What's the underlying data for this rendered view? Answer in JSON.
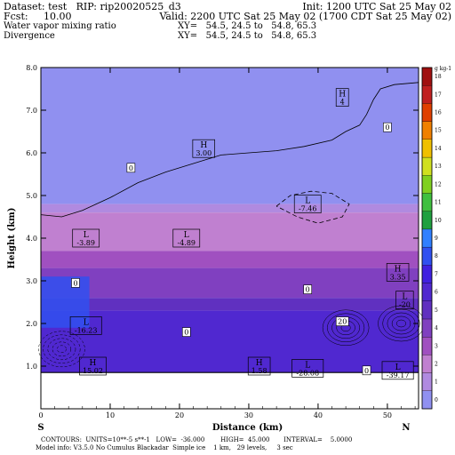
{
  "header": {
    "line1_left": "Dataset: test   RIP: rip20020525_d3",
    "line1_right": "Init: 1200 UTC Sat 25 May 02",
    "line2_left": "Fcst:     10.00",
    "line2_right": "Valid: 2200 UTC Sat 25 May 02 (1700 CDT Sat 25 May 02)",
    "line3_left": "Water vapor mixing ratio",
    "line3_right": "XY=   54.5, 24.5 to   54.8, 65.3",
    "line4_left": "Divergence",
    "line4_right": "XY=   54.5, 24.5 to   54.8, 65.3"
  },
  "footer": {
    "line1": "CONTOURS:  UNITS=10**-5 s**-1   LOW=  -36.000        HIGH=  45.000       INTERVAL=    5.0000",
    "line2": "Model info: V3.5.0 No Cumulus Blackadar  Simple ice    1 km,   29 levels,     3 sec"
  },
  "chart_data": {
    "type": "heatmap",
    "xlabel": "Distance (km)",
    "ylabel": "Height (km)",
    "xlim": [
      0,
      54.5
    ],
    "ylim": [
      0,
      8.0
    ],
    "xticks": [
      0,
      10,
      20,
      30,
      40,
      50
    ],
    "yticks": [
      1.0,
      2.0,
      3.0,
      4.0,
      5.0,
      6.0,
      7.0,
      8.0
    ],
    "x_end_labels": {
      "left": "S",
      "right": "N"
    },
    "terrain_top_km": 0.85,
    "colorbar": {
      "unit": "g kg-1",
      "levels": [
        0,
        1,
        2,
        3,
        4,
        5,
        6,
        7,
        8,
        9,
        10,
        11,
        12,
        13,
        14,
        15,
        16,
        17,
        18
      ],
      "colors": [
        "#9090f0",
        "#b08ae0",
        "#c080d0",
        "#a050c0",
        "#8040c0",
        "#6030c0",
        "#5028d0",
        "#4020e0",
        "#3050f0",
        "#3080ff",
        "#20a040",
        "#40c040",
        "#80d020",
        "#d0e020",
        "#f0c000",
        "#f08000",
        "#e04000",
        "#c02020",
        "#a01010"
      ]
    },
    "mixing_ratio_bands": [
      {
        "top_km": 8.0,
        "value": 0
      },
      {
        "top_km": 4.8,
        "value": 1
      },
      {
        "top_km": 4.6,
        "value": 2
      },
      {
        "top_km": 3.7,
        "value": 3
      },
      {
        "top_km": 3.3,
        "value": 4
      },
      {
        "top_km": 2.6,
        "value": 5
      },
      {
        "top_km": 2.3,
        "value": 6
      }
    ],
    "moist_blob": {
      "value": 8,
      "x": [
        0,
        7
      ],
      "y": [
        1.9,
        3.1
      ]
    },
    "extrema": [
      {
        "type": "H",
        "value": "4",
        "x": 43.5,
        "y": 7.3
      },
      {
        "type": "H",
        "value": "3.00",
        "x": 23.5,
        "y": 6.1
      },
      {
        "type": "L",
        "value": "-7.46",
        "x": 38.5,
        "y": 4.8
      },
      {
        "type": "L",
        "value": "-3.89",
        "x": 6.5,
        "y": 4.0
      },
      {
        "type": "L",
        "value": "-4.89",
        "x": 21.0,
        "y": 4.0
      },
      {
        "type": "H",
        "value": "3.35",
        "x": 51.5,
        "y": 3.2
      },
      {
        "type": "L",
        "value": "-20",
        "x": 52.5,
        "y": 2.55
      },
      {
        "type": "L",
        "value": "-16.23",
        "x": 6.5,
        "y": 1.95
      },
      {
        "type": "H",
        "value": "15.02",
        "x": 7.5,
        "y": 1.0
      },
      {
        "type": "H",
        "value": "1.58",
        "x": 31.5,
        "y": 1.0
      },
      {
        "type": "L",
        "value": "-28.08",
        "x": 38.5,
        "y": 0.95
      },
      {
        "type": "L",
        "value": "-39.17",
        "x": 51.5,
        "y": 0.9
      }
    ],
    "contour_labels": [
      {
        "text": "0",
        "x": 13.0,
        "y": 5.65
      },
      {
        "text": "0",
        "x": 50.0,
        "y": 6.6
      },
      {
        "text": "0",
        "x": 5.0,
        "y": 2.95
      },
      {
        "text": "0",
        "x": 38.5,
        "y": 2.8
      },
      {
        "text": "0",
        "x": 21.0,
        "y": 1.8
      },
      {
        "text": "20",
        "x": 43.5,
        "y": 2.05
      },
      {
        "text": "0",
        "x": 47.0,
        "y": 0.9
      }
    ],
    "zero_contour": [
      [
        0,
        4.55
      ],
      [
        3,
        4.5
      ],
      [
        6,
        4.65
      ],
      [
        10,
        4.95
      ],
      [
        14,
        5.3
      ],
      [
        18,
        5.55
      ],
      [
        22,
        5.75
      ],
      [
        26,
        5.95
      ],
      [
        30,
        6.0
      ],
      [
        34,
        6.05
      ],
      [
        38,
        6.15
      ],
      [
        42,
        6.3
      ],
      [
        44,
        6.5
      ],
      [
        46,
        6.65
      ],
      [
        47,
        6.9
      ],
      [
        48,
        7.25
      ],
      [
        49,
        7.5
      ],
      [
        51,
        7.6
      ],
      [
        54.5,
        7.65
      ]
    ],
    "neg_contour": [
      [
        34,
        4.75
      ],
      [
        36,
        5.0
      ],
      [
        39,
        5.1
      ],
      [
        42,
        5.05
      ],
      [
        44.5,
        4.8
      ],
      [
        43.5,
        4.5
      ],
      [
        40,
        4.35
      ],
      [
        37,
        4.5
      ],
      [
        34,
        4.75
      ]
    ]
  }
}
